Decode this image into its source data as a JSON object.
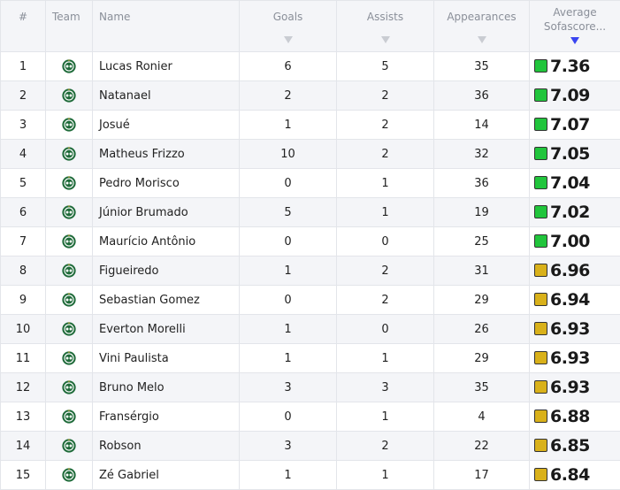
{
  "headers": {
    "rank": "#",
    "team": "Team",
    "name": "Name",
    "goals": "Goals",
    "assists": "Assists",
    "appearances": "Appearances",
    "rating_line1": "Average",
    "rating_line2": "Sofascore..."
  },
  "colors": {
    "rating_high": "#21c53c",
    "rating_mid": "#d9b11a",
    "sort_active": "#3a45f0"
  },
  "team_icon": "club-crest-icon",
  "rows": [
    {
      "rank": "1",
      "name": "Lucas Ronier",
      "goals": "6",
      "assists": "5",
      "appearances": "35",
      "rating": "7.36",
      "tier": "high"
    },
    {
      "rank": "2",
      "name": "Natanael",
      "goals": "2",
      "assists": "2",
      "appearances": "36",
      "rating": "7.09",
      "tier": "high"
    },
    {
      "rank": "3",
      "name": "Josué",
      "goals": "1",
      "assists": "2",
      "appearances": "14",
      "rating": "7.07",
      "tier": "high"
    },
    {
      "rank": "4",
      "name": "Matheus Frizzo",
      "goals": "10",
      "assists": "2",
      "appearances": "32",
      "rating": "7.05",
      "tier": "high"
    },
    {
      "rank": "5",
      "name": "Pedro Morisco",
      "goals": "0",
      "assists": "1",
      "appearances": "36",
      "rating": "7.04",
      "tier": "high"
    },
    {
      "rank": "6",
      "name": "Júnior Brumado",
      "goals": "5",
      "assists": "1",
      "appearances": "19",
      "rating": "7.02",
      "tier": "high"
    },
    {
      "rank": "7",
      "name": "Maurício Antônio",
      "goals": "0",
      "assists": "0",
      "appearances": "25",
      "rating": "7.00",
      "tier": "high"
    },
    {
      "rank": "8",
      "name": "Figueiredo",
      "goals": "1",
      "assists": "2",
      "appearances": "31",
      "rating": "6.96",
      "tier": "mid"
    },
    {
      "rank": "9",
      "name": "Sebastian Gomez",
      "goals": "0",
      "assists": "2",
      "appearances": "29",
      "rating": "6.94",
      "tier": "mid"
    },
    {
      "rank": "10",
      "name": "Everton Morelli",
      "goals": "1",
      "assists": "0",
      "appearances": "26",
      "rating": "6.93",
      "tier": "mid"
    },
    {
      "rank": "11",
      "name": "Vini Paulista",
      "goals": "1",
      "assists": "1",
      "appearances": "29",
      "rating": "6.93",
      "tier": "mid"
    },
    {
      "rank": "12",
      "name": "Bruno Melo",
      "goals": "3",
      "assists": "3",
      "appearances": "35",
      "rating": "6.93",
      "tier": "mid"
    },
    {
      "rank": "13",
      "name": "Fransérgio",
      "goals": "0",
      "assists": "1",
      "appearances": "4",
      "rating": "6.88",
      "tier": "mid"
    },
    {
      "rank": "14",
      "name": "Robson",
      "goals": "3",
      "assists": "2",
      "appearances": "22",
      "rating": "6.85",
      "tier": "mid"
    },
    {
      "rank": "15",
      "name": "Zé Gabriel",
      "goals": "1",
      "assists": "1",
      "appearances": "17",
      "rating": "6.84",
      "tier": "mid"
    }
  ]
}
